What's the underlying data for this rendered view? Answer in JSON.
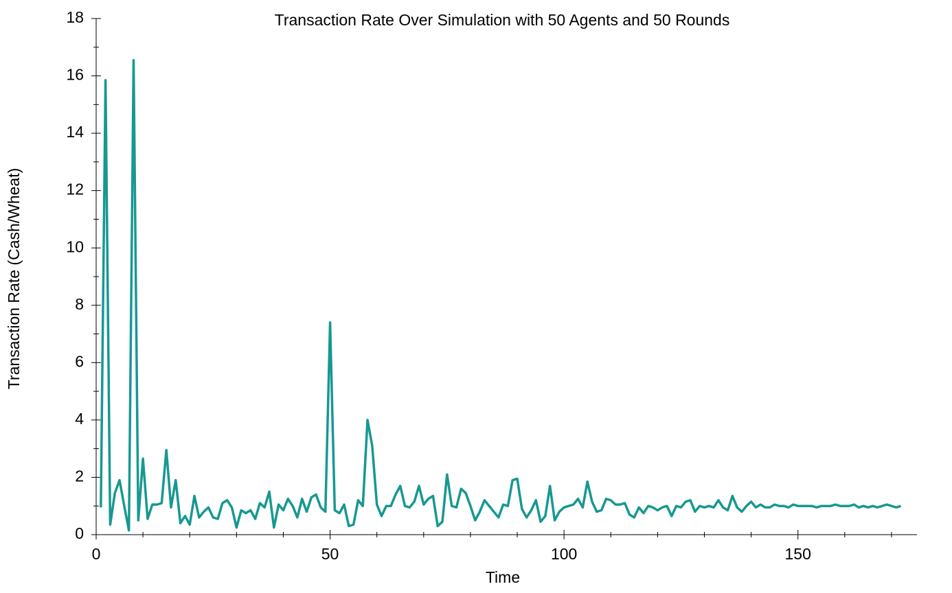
{
  "chart_data": {
    "type": "line",
    "title": "Transaction Rate Over Simulation with 50 Agents and 50 Rounds",
    "x_label": "Time",
    "y_label": "Transaction Rate (Cash/Wheat)",
    "x": [
      1,
      2,
      3,
      4,
      5,
      6,
      7,
      8,
      9,
      10,
      11,
      12,
      13,
      14,
      15,
      16,
      17,
      18,
      19,
      20,
      21,
      22,
      23,
      24,
      25,
      26,
      27,
      28,
      29,
      30,
      31,
      32,
      33,
      34,
      35,
      36,
      37,
      38,
      39,
      40,
      41,
      42,
      43,
      44,
      45,
      46,
      47,
      48,
      49,
      50,
      51,
      52,
      53,
      54,
      55,
      56,
      57,
      58,
      59,
      60,
      61,
      62,
      63,
      64,
      65,
      66,
      67,
      68,
      69,
      70,
      71,
      72,
      73,
      74,
      75,
      76,
      77,
      78,
      79,
      80,
      81,
      82,
      83,
      84,
      85,
      86,
      87,
      88,
      89,
      90,
      91,
      92,
      93,
      94,
      95,
      96,
      97,
      98,
      99,
      100,
      101,
      102,
      103,
      104,
      105,
      106,
      107,
      108,
      109,
      110,
      111,
      112,
      113,
      114,
      115,
      116,
      117,
      118,
      119,
      120,
      121,
      122,
      123,
      124,
      125,
      126,
      127,
      128,
      129,
      130,
      131,
      132,
      133,
      134,
      135,
      136,
      137,
      138,
      139,
      140,
      141,
      142,
      143,
      144,
      145,
      146,
      147,
      148,
      149,
      150,
      151,
      152,
      153,
      154,
      155,
      156,
      157,
      158,
      159,
      160,
      161,
      162,
      163,
      164,
      165,
      166,
      167,
      168,
      169,
      170,
      171,
      172
    ],
    "series": [
      {
        "name": "Transaction Rate",
        "color": "#179891",
        "values": [
          0.95,
          15.85,
          0.35,
          1.45,
          1.9,
          1.0,
          0.15,
          16.55,
          0.5,
          2.65,
          0.55,
          1.05,
          1.05,
          1.1,
          2.95,
          0.95,
          1.9,
          0.4,
          0.65,
          0.35,
          1.35,
          0.6,
          0.8,
          0.95,
          0.6,
          0.55,
          1.1,
          1.2,
          0.95,
          0.25,
          0.85,
          0.75,
          0.85,
          0.55,
          1.1,
          0.95,
          1.5,
          0.25,
          1.05,
          0.85,
          1.25,
          1.0,
          0.6,
          1.25,
          0.8,
          1.3,
          1.4,
          0.95,
          0.8,
          7.4,
          0.85,
          0.75,
          1.05,
          0.3,
          0.35,
          1.2,
          1.0,
          4.0,
          3.1,
          1.05,
          0.65,
          1.0,
          1.0,
          1.4,
          1.7,
          1.0,
          0.95,
          1.15,
          1.7,
          1.05,
          1.25,
          1.35,
          0.3,
          0.45,
          2.1,
          1.0,
          0.95,
          1.6,
          1.45,
          1.0,
          0.5,
          0.8,
          1.2,
          1.0,
          0.8,
          0.6,
          1.05,
          1.0,
          1.9,
          1.95,
          0.9,
          0.6,
          0.85,
          1.2,
          0.45,
          0.65,
          1.7,
          0.5,
          0.8,
          0.95,
          1.0,
          1.05,
          1.25,
          0.95,
          1.85,
          1.15,
          0.8,
          0.85,
          1.25,
          1.2,
          1.05,
          1.05,
          1.1,
          0.7,
          0.6,
          0.95,
          0.75,
          1.0,
          0.95,
          0.85,
          0.95,
          1.0,
          0.65,
          1.0,
          0.95,
          1.15,
          1.2,
          0.8,
          1.0,
          0.95,
          1.0,
          0.95,
          1.2,
          0.95,
          0.85,
          1.35,
          0.95,
          0.8,
          1.0,
          1.15,
          0.95,
          1.05,
          0.95,
          0.95,
          1.05,
          1.0,
          1.0,
          0.95,
          1.05,
          1.0,
          1.0,
          1.0,
          1.0,
          0.95,
          1.0,
          1.0,
          1.0,
          1.05,
          1.0,
          1.0,
          1.0,
          1.05,
          0.95,
          1.0,
          0.95,
          1.0,
          0.95,
          1.0,
          1.05,
          1.0,
          0.95,
          1.0
        ]
      }
    ],
    "xlim": [
      0,
      175
    ],
    "ylim": [
      0,
      18
    ],
    "xticks": [
      0,
      50,
      100,
      150
    ],
    "yticks": [
      0,
      2,
      4,
      6,
      8,
      10,
      12,
      14,
      16,
      18
    ],
    "xminorticks": [
      10,
      20,
      30,
      40,
      60,
      70,
      80,
      90,
      110,
      120,
      130,
      140,
      160,
      170
    ],
    "yminorticks": [
      1,
      3,
      5,
      7,
      9,
      11,
      13,
      15,
      17
    ]
  }
}
